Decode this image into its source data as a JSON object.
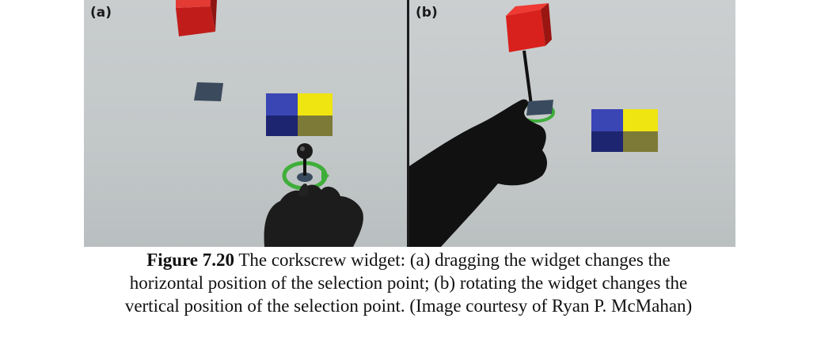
{
  "figure": {
    "panels": [
      {
        "label": "(a)"
      },
      {
        "label": "(b)"
      }
    ],
    "caption": {
      "number": "Figure 7.20",
      "lines": [
        "The corkscrew widget: (a) dragging the widget changes the",
        "horizontal position of the selection point; (b) rotating the widget changes the",
        "vertical position of the selection point. (Image courtesy of Ryan P. McMahan)"
      ]
    },
    "colors": {
      "red_cube": "#d8201c",
      "blue_cube": "#2b3595",
      "yellow_cube": "#e8de10",
      "widget_ring": "#3fae3a",
      "dark_tile": "#3a4a5e"
    }
  }
}
